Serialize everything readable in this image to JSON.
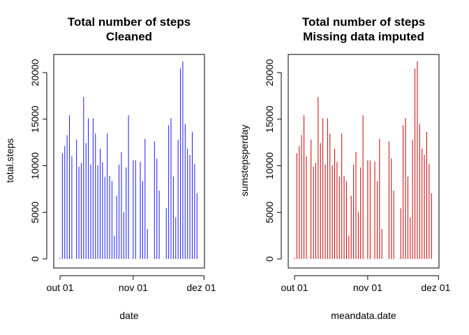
{
  "chart_data": [
    {
      "type": "bar",
      "title_lines": [
        "Total number of steps",
        "Cleaned"
      ],
      "xlabel": "date",
      "ylabel": "total.steps",
      "color": "#1a1aff",
      "x_tick_labels": [
        "out 01",
        "nov 01",
        "dez 01"
      ],
      "x_tick_days": [
        1,
        32,
        62
      ],
      "y_ticks": [
        0,
        5000,
        10000,
        15000,
        20000
      ],
      "ylim": [
        0,
        21200
      ],
      "x_domain_days": [
        1,
        61
      ],
      "days": [
        1,
        2,
        3,
        4,
        5,
        6,
        7,
        8,
        9,
        10,
        11,
        12,
        13,
        14,
        15,
        16,
        17,
        18,
        19,
        20,
        21,
        22,
        23,
        24,
        25,
        26,
        27,
        28,
        29,
        30,
        31,
        32,
        33,
        34,
        35,
        36,
        37,
        38,
        39,
        40,
        41,
        42,
        43,
        44,
        45,
        46,
        47,
        48,
        49,
        50,
        51,
        52,
        53,
        54,
        55,
        56,
        57,
        58,
        59,
        60,
        61
      ],
      "values": [
        126,
        11352,
        12116,
        13294,
        15420,
        11015,
        null,
        12811,
        9900,
        10304,
        17382,
        12426,
        15098,
        10139,
        15084,
        13452,
        10056,
        11829,
        10395,
        8821,
        13460,
        8918,
        8355,
        2492,
        6778,
        10119,
        11458,
        5018,
        9819,
        15414,
        null,
        10600,
        10571,
        null,
        10439,
        8334,
        12883,
        3219,
        null,
        null,
        12608,
        10765,
        7336,
        null,
        41,
        5441,
        14339,
        15110,
        8841,
        4472,
        12787,
        20427,
        21194,
        14478,
        11834,
        11162,
        13646,
        10183,
        7047,
        null,
        null
      ]
    },
    {
      "type": "bar",
      "title_lines": [
        "Total number of steps",
        "Missing data imputed"
      ],
      "xlabel": "meandata.date",
      "ylabel": "sumstepsperday",
      "color": "#cc0000",
      "x_tick_labels": [
        "out 01",
        "nov 01",
        "dez 01"
      ],
      "x_tick_days": [
        1,
        32,
        62
      ],
      "y_ticks": [
        0,
        5000,
        10000,
        15000,
        20000
      ],
      "ylim": [
        0,
        21200
      ],
      "x_domain_days": [
        1,
        61
      ],
      "days": [
        1,
        2,
        3,
        4,
        5,
        6,
        7,
        8,
        9,
        10,
        11,
        12,
        13,
        14,
        15,
        16,
        17,
        18,
        19,
        20,
        21,
        22,
        23,
        24,
        25,
        26,
        27,
        28,
        29,
        30,
        31,
        32,
        33,
        34,
        35,
        36,
        37,
        38,
        39,
        40,
        41,
        42,
        43,
        44,
        45,
        46,
        47,
        48,
        49,
        50,
        51,
        52,
        53,
        54,
        55,
        56,
        57,
        58,
        59,
        60,
        61
      ],
      "values": [
        126,
        11352,
        12116,
        13294,
        15420,
        11015,
        null,
        12811,
        9900,
        10304,
        17382,
        12426,
        15098,
        10139,
        15084,
        13452,
        10056,
        11829,
        10395,
        8821,
        13460,
        8918,
        8355,
        2492,
        6778,
        10119,
        11458,
        5018,
        9819,
        15414,
        null,
        10600,
        10571,
        null,
        10439,
        8334,
        12883,
        3219,
        null,
        null,
        12608,
        10765,
        7336,
        null,
        41,
        5441,
        14339,
        15110,
        8841,
        4472,
        12787,
        20427,
        21194,
        14478,
        11834,
        11162,
        13646,
        10183,
        7047,
        null,
        null
      ]
    }
  ]
}
